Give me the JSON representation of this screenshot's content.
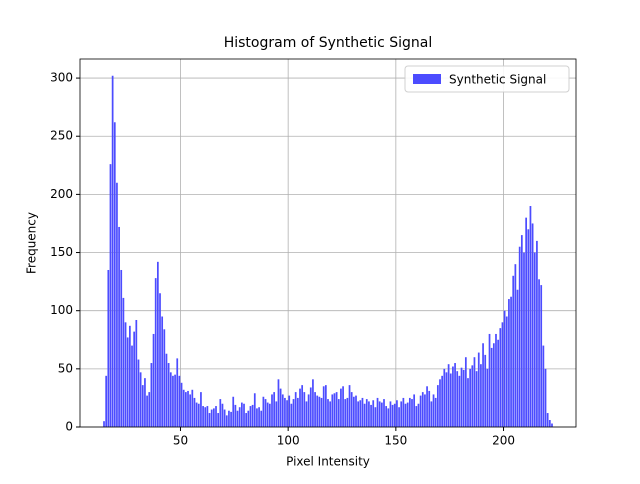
{
  "chart_data": {
    "type": "histogram",
    "title": "Histogram of Synthetic Signal",
    "xlabel": "Pixel Intensity",
    "ylabel": "Frequency",
    "bins": [
      14,
      15,
      16,
      17,
      18,
      19,
      20,
      21,
      22,
      23,
      24,
      25,
      26,
      27,
      28,
      29,
      30,
      31,
      32,
      33,
      34,
      35,
      36,
      37,
      38,
      39,
      40,
      41,
      42,
      43,
      44,
      45,
      46,
      47,
      48,
      49,
      50,
      51,
      52,
      53,
      54,
      55,
      56,
      57,
      58,
      59,
      60,
      61,
      62,
      63,
      64,
      65,
      66,
      67,
      68,
      69,
      70,
      71,
      72,
      73,
      74,
      75,
      76,
      77,
      78,
      79,
      80,
      81,
      82,
      83,
      84,
      85,
      86,
      87,
      88,
      89,
      90,
      91,
      92,
      93,
      94,
      95,
      96,
      97,
      98,
      99,
      100,
      101,
      102,
      103,
      104,
      105,
      106,
      107,
      108,
      109,
      110,
      111,
      112,
      113,
      114,
      115,
      116,
      117,
      118,
      119,
      120,
      121,
      122,
      123,
      124,
      125,
      126,
      127,
      128,
      129,
      130,
      131,
      132,
      133,
      134,
      135,
      136,
      137,
      138,
      139,
      140,
      141,
      142,
      143,
      144,
      145,
      146,
      147,
      148,
      149,
      150,
      151,
      152,
      153,
      154,
      155,
      156,
      157,
      158,
      159,
      160,
      161,
      162,
      163,
      164,
      165,
      166,
      167,
      168,
      169,
      170,
      171,
      172,
      173,
      174,
      175,
      176,
      177,
      178,
      179,
      180,
      181,
      182,
      183,
      184,
      185,
      186,
      187,
      188,
      189,
      190,
      191,
      192,
      193,
      194,
      195,
      196,
      197,
      198,
      199,
      200,
      201,
      202,
      203,
      204,
      205,
      206,
      207,
      208,
      209,
      210,
      211,
      212,
      213,
      214,
      215,
      216,
      217,
      218,
      219,
      220,
      221,
      222,
      223
    ],
    "series": [
      {
        "name": "Synthetic Signal",
        "color": "#4c4cff",
        "values": [
          5,
          44,
          135,
          226,
          302,
          262,
          210,
          172,
          135,
          111,
          90,
          77,
          87,
          70,
          82,
          92,
          58,
          47,
          36,
          42,
          27,
          30,
          55,
          80,
          128,
          142,
          115,
          95,
          84,
          63,
          55,
          47,
          44,
          45,
          59,
          44,
          38,
          32,
          30,
          31,
          28,
          32,
          25,
          21,
          20,
          30,
          18,
          17,
          18,
          12,
          15,
          16,
          18,
          12,
          24,
          20,
          15,
          10,
          14,
          13,
          26,
          19,
          14,
          17,
          21,
          20,
          12,
          14,
          18,
          19,
          29,
          16,
          17,
          14,
          26,
          24,
          21,
          20,
          28,
          30,
          22,
          41,
          33,
          28,
          25,
          23,
          27,
          20,
          24,
          30,
          25,
          33,
          36,
          30,
          22,
          28,
          34,
          41,
          30,
          27,
          26,
          25,
          35,
          36,
          24,
          22,
          28,
          29,
          30,
          24,
          33,
          35,
          24,
          25,
          36,
          30,
          26,
          27,
          22,
          23,
          25,
          20,
          24,
          22,
          19,
          23,
          17,
          25,
          22,
          21,
          24,
          18,
          16,
          22,
          19,
          20,
          23,
          17,
          22,
          25,
          20,
          21,
          25,
          24,
          28,
          18,
          20,
          27,
          30,
          28,
          35,
          31,
          22,
          28,
          25,
          36,
          41,
          44,
          50,
          47,
          54,
          46,
          52,
          55,
          48,
          44,
          51,
          49,
          60,
          42,
          50,
          53,
          60,
          48,
          64,
          54,
          72,
          62,
          50,
          80,
          68,
          72,
          80,
          75,
          85,
          90,
          100,
          95,
          110,
          112,
          130,
          140,
          118,
          155,
          165,
          150,
          180,
          170,
          190,
          175,
          150,
          160,
          127,
          122,
          70,
          50,
          12,
          6,
          3
        ]
      }
    ],
    "xlim": [
      3.35,
      233.65
    ],
    "ylim": [
      0,
      316.4
    ],
    "xticks": [
      50,
      100,
      150,
      200
    ],
    "yticks": [
      0,
      50,
      100,
      150,
      200,
      250,
      300
    ],
    "grid": true,
    "legend": "upper right"
  }
}
